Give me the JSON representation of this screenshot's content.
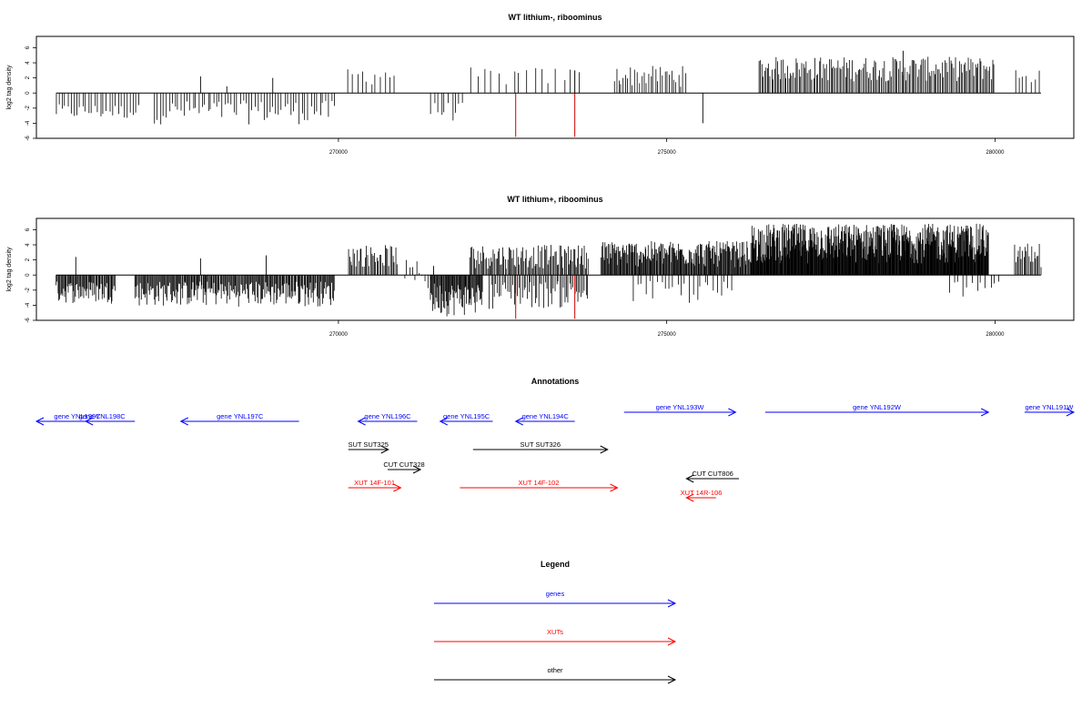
{
  "chart_data": [
    {
      "type": "bar",
      "title": "WT lithium-, riboominus",
      "ylabel": "log2 tag density",
      "xlim": [
        265400,
        281200
      ],
      "ylim": [
        -6,
        7.5
      ],
      "xticks": [
        270000,
        275000,
        280000
      ],
      "yticks": [
        -6,
        -4,
        -2,
        0,
        2,
        4,
        6
      ],
      "ytick_labels": [
        "-6",
        "-4",
        "-2",
        "0",
        "2",
        "4",
        "6"
      ],
      "baseline_range": [
        265700,
        280700
      ],
      "segments": [
        {
          "from": 265700,
          "to": 267000,
          "step": 45,
          "min": -3.6,
          "max": -1.5
        },
        {
          "from": 267200,
          "to": 269950,
          "step": 45,
          "min": -4.2,
          "max": -1.0
        },
        {
          "from": 270150,
          "to": 270900,
          "step": 70,
          "min": 1.0,
          "max": 3.5
        },
        {
          "from": 271400,
          "to": 271900,
          "step": 55,
          "min": -3.8,
          "max": -1.2
        },
        {
          "from": 272000,
          "to": 273700,
          "step": 110,
          "min": 0.8,
          "max": 3.4
        },
        {
          "from": 274200,
          "to": 275300,
          "step": 35,
          "min": 0.8,
          "max": 3.6
        },
        {
          "from": 276400,
          "to": 280000,
          "step": 22,
          "min": 1.5,
          "max": 4.8
        },
        {
          "from": 280300,
          "to": 280700,
          "step": 60,
          "min": 1.0,
          "max": 3.5
        }
      ],
      "extra_bars": [
        {
          "x": 267900,
          "y": 2.2
        },
        {
          "x": 268300,
          "y": 0.9
        },
        {
          "x": 269000,
          "y": 2.0
        },
        {
          "x": 275550,
          "y": -4.0
        },
        {
          "x": 278600,
          "y": 5.6
        }
      ],
      "highlight_bars": [
        {
          "x": 272700,
          "y": -5.8,
          "color": "#cc0000"
        },
        {
          "x": 273600,
          "y": -5.8,
          "color": "#cc0000"
        },
        {
          "x": 273600,
          "y": 3.0,
          "color": "#000000"
        }
      ]
    },
    {
      "type": "bar",
      "title": "WT lithium+, riboominus",
      "ylabel": "log2 tag density",
      "xlim": [
        265400,
        281200
      ],
      "ylim": [
        -6,
        7.5
      ],
      "xticks": [
        270000,
        275000,
        280000
      ],
      "yticks": [
        -6,
        -4,
        -2,
        0,
        2,
        4,
        6
      ],
      "ytick_labels": [
        "-6",
        "-4",
        "-2",
        "0",
        "2",
        "4",
        "6"
      ],
      "baseline_range": [
        265700,
        280700
      ],
      "segments": [
        {
          "from": 265700,
          "to": 266600,
          "step": 14,
          "min": -3.8,
          "max": -0.8
        },
        {
          "from": 266900,
          "to": 269950,
          "step": 14,
          "min": -4.2,
          "max": -0.8
        },
        {
          "from": 270150,
          "to": 270900,
          "step": 20,
          "min": 1.0,
          "max": 4.0
        },
        {
          "from": 271000,
          "to": 271400,
          "step": 40,
          "min": -2.5,
          "max": 2.0
        },
        {
          "from": 271400,
          "to": 272200,
          "step": 12,
          "min": -5.5,
          "max": -1.0
        },
        {
          "from": 272000,
          "to": 273800,
          "step": 18,
          "min": 0.8,
          "max": 4.0
        },
        {
          "from": 272300,
          "to": 273800,
          "step": 25,
          "min": -4.5,
          "max": -0.8
        },
        {
          "from": 274000,
          "to": 276300,
          "step": 12,
          "min": 1.0,
          "max": 4.5
        },
        {
          "from": 274500,
          "to": 276000,
          "step": 60,
          "min": -4.0,
          "max": -0.8
        },
        {
          "from": 276300,
          "to": 279900,
          "step": 8,
          "min": 1.5,
          "max": 6.8
        },
        {
          "from": 279300,
          "to": 280100,
          "step": 70,
          "min": -3.0,
          "max": -0.8
        },
        {
          "from": 280300,
          "to": 280700,
          "step": 20,
          "min": 1.0,
          "max": 4.3
        }
      ],
      "extra_bars": [
        {
          "x": 266000,
          "y": 2.4
        },
        {
          "x": 267900,
          "y": 2.2
        },
        {
          "x": 268900,
          "y": 2.6
        },
        {
          "x": 271450,
          "y": 1.2
        }
      ],
      "highlight_bars": [
        {
          "x": 272700,
          "y": -5.8,
          "color": "#cc0000"
        },
        {
          "x": 273600,
          "y": -5.8,
          "color": "#cc0000"
        },
        {
          "x": 273600,
          "y": 3.4,
          "color": "#000000"
        }
      ]
    }
  ],
  "annotations": {
    "title": "Annotations",
    "features": [
      {
        "name": "gene YNL199C",
        "from": 265400,
        "to": 266900,
        "strand": "-",
        "row": 0,
        "color": "#0000ff"
      },
      {
        "name": "gene YNL198C",
        "from": 266150,
        "to": 266650,
        "strand": "-",
        "row": 0,
        "color": "#0000ff"
      },
      {
        "name": "gene YNL197C",
        "from": 267600,
        "to": 269400,
        "strand": "-",
        "row": 0,
        "color": "#0000ff"
      },
      {
        "name": "gene YNL196C",
        "from": 270300,
        "to": 271200,
        "strand": "-",
        "row": 0,
        "color": "#0000ff"
      },
      {
        "name": "gene YNL195C",
        "from": 271550,
        "to": 272350,
        "strand": "-",
        "row": 0,
        "color": "#0000ff"
      },
      {
        "name": "gene YNL194C",
        "from": 272700,
        "to": 273600,
        "strand": "-",
        "row": 0,
        "color": "#0000ff"
      },
      {
        "name": "gene YNL193W",
        "from": 274350,
        "to": 276050,
        "strand": "+",
        "row": -1,
        "color": "#0000ff"
      },
      {
        "name": "gene YNL192W",
        "from": 276500,
        "to": 279900,
        "strand": "+",
        "row": -1,
        "color": "#0000ff"
      },
      {
        "name": "gene YNL191W",
        "from": 280450,
        "to": 281200,
        "strand": "+",
        "row": -1,
        "color": "#0000ff"
      },
      {
        "name": "SUT SUT325",
        "from": 270150,
        "to": 270760,
        "strand": "+",
        "row": 1,
        "color": "#000000"
      },
      {
        "name": "SUT SUT326",
        "from": 272050,
        "to": 274100,
        "strand": "+",
        "row": 1,
        "color": "#000000"
      },
      {
        "name": "CUT CUT328",
        "from": 270750,
        "to": 271250,
        "strand": "+",
        "row": 2,
        "color": "#000000"
      },
      {
        "name": "CUT CUT806",
        "from": 275300,
        "to": 276100,
        "strand": "-",
        "row": 3,
        "color": "#000000"
      },
      {
        "name": "XUT 14F-101",
        "from": 270150,
        "to": 270950,
        "strand": "+",
        "row": 4,
        "color": "#ff0000"
      },
      {
        "name": "XUT 14F-102",
        "from": 271850,
        "to": 274250,
        "strand": "+",
        "row": 4,
        "color": "#ff0000"
      },
      {
        "name": "XUT 14R-106",
        "from": 275300,
        "to": 275750,
        "strand": "-",
        "row": 5,
        "color": "#ff0000"
      }
    ]
  },
  "legend": {
    "title": "Legend",
    "items": [
      {
        "label": "genes",
        "color": "#0000ff"
      },
      {
        "label": "XUTs",
        "color": "#ff0000"
      },
      {
        "label": "other",
        "color": "#000000"
      }
    ]
  }
}
